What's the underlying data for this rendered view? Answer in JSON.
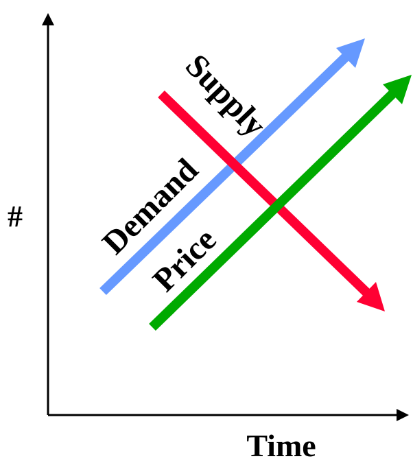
{
  "axes": {
    "y_label": "#",
    "x_label": "Time"
  },
  "lines": [
    {
      "label": "Supply"
    },
    {
      "label": "Demand"
    },
    {
      "label": "Price"
    }
  ]
}
